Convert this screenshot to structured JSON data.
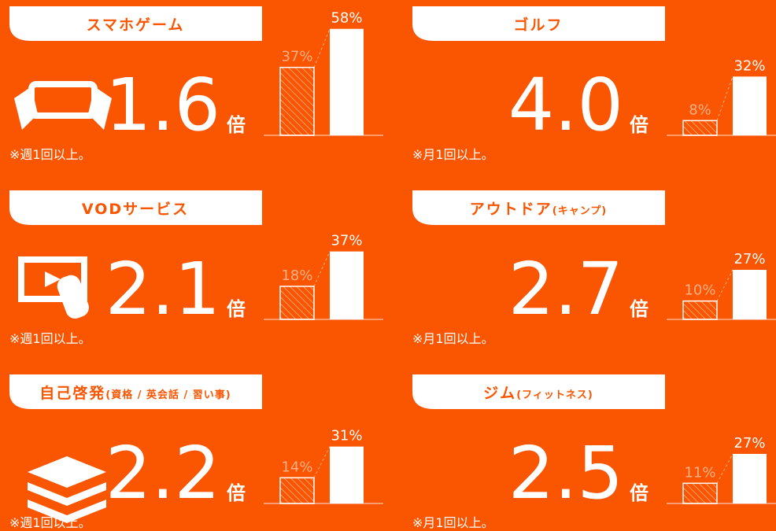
{
  "chart_data": [
    {
      "type": "bar",
      "title": "スマホゲーム",
      "multiplier": "1.6",
      "unit": "倍",
      "note": "※週1回以上。",
      "values": [
        37,
        58
      ],
      "value_labels": [
        "37%",
        "58%"
      ]
    },
    {
      "type": "bar",
      "title": "ゴルフ",
      "multiplier": "4.0",
      "unit": "倍",
      "note": "※月1回以上。",
      "values": [
        8,
        32
      ],
      "value_labels": [
        "8%",
        "32%"
      ]
    },
    {
      "type": "bar",
      "title": "VODサービス",
      "multiplier": "2.1",
      "unit": "倍",
      "note": "※週1回以上。",
      "values": [
        18,
        37
      ],
      "value_labels": [
        "18%",
        "37%"
      ]
    },
    {
      "type": "bar",
      "title": "アウトドア",
      "title_sub": "(キャンプ)",
      "multiplier": "2.7",
      "unit": "倍",
      "note": "※月1回以上。",
      "values": [
        10,
        27
      ],
      "value_labels": [
        "10%",
        "27%"
      ]
    },
    {
      "type": "bar",
      "title": "自己啓発",
      "title_sub": "(資格 / 英会話 / 習い事)",
      "multiplier": "2.2",
      "unit": "倍",
      "note": "※週1回以上。",
      "values": [
        14,
        31
      ],
      "value_labels": [
        "14%",
        "31%"
      ]
    },
    {
      "type": "bar",
      "title": "ジム",
      "title_sub": "(フィットネス)",
      "multiplier": "2.5",
      "unit": "倍",
      "note": "※月1回以上。",
      "values": [
        11,
        27
      ],
      "value_labels": [
        "11%",
        "27%"
      ]
    }
  ]
}
